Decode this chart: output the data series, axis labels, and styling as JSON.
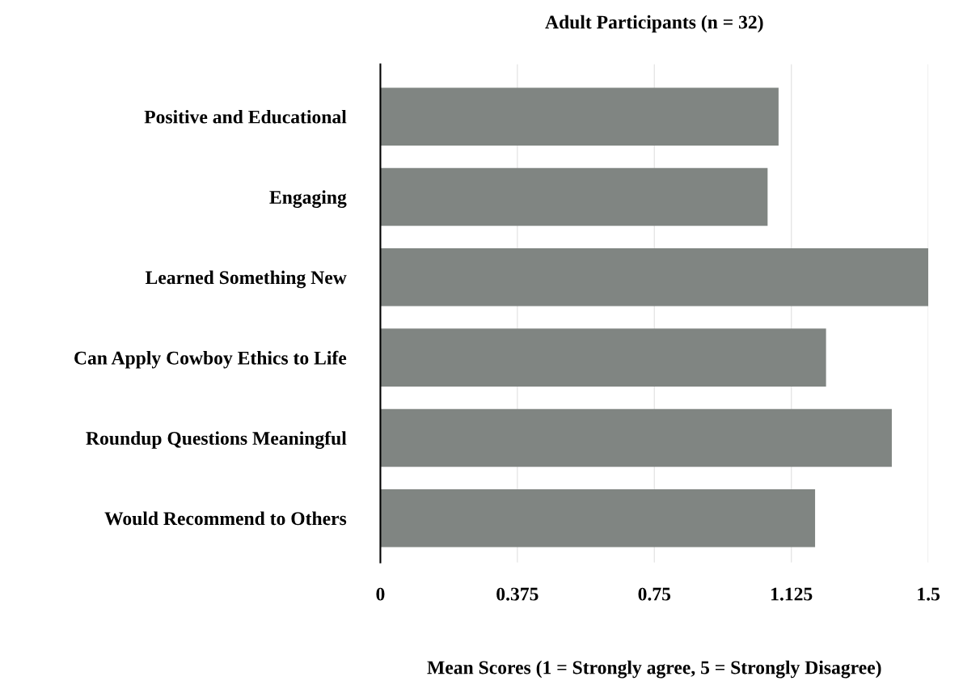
{
  "chart_data": {
    "type": "bar",
    "orientation": "horizontal",
    "title": "Adult Participants (n = 32)",
    "xlabel": "Mean Scores (1 = Strongly agree, 5 = Strongly Disagree)",
    "categories": [
      "Positive and Educational",
      "Engaging",
      "Learned Something New",
      "Can Apply Cowboy Ethics to Life",
      "Roundup Questions Meaningful",
      "Would Recommend to Others"
    ],
    "values": [
      1.09,
      1.06,
      1.5,
      1.22,
      1.4,
      1.19
    ],
    "color": "#808582",
    "xlim": [
      0,
      1.5
    ],
    "xticks": [
      0,
      0.375,
      0.75,
      1.125,
      1.5
    ],
    "grid": "x"
  }
}
